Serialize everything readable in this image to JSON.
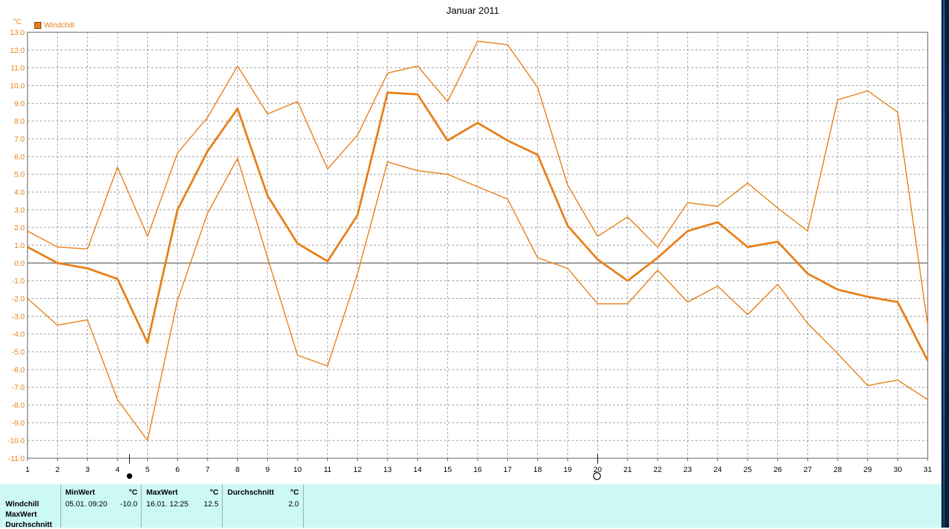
{
  "chart_data": {
    "type": "line",
    "title": "Januar 2011",
    "ylabel": "°C",
    "xlabel": "",
    "legend": [
      "Windchill"
    ],
    "ylim": [
      -11,
      13
    ],
    "yticks": [
      "13.0",
      "12.0",
      "11.0",
      "10.0",
      "9.0",
      "8.0",
      "7.0",
      "6.0",
      "5.0",
      "4.0",
      "3.0",
      "2.0",
      "1.0",
      "0.0",
      "-1.0",
      "-2.0",
      "-3.0",
      "-4.0",
      "-5.0",
      "-6.0",
      "-7.0",
      "-8.0",
      "-9.0",
      "-10.0",
      "-11.0"
    ],
    "x": [
      "1",
      "2",
      "3",
      "4",
      "5",
      "6",
      "7",
      "8",
      "9",
      "10",
      "11",
      "12",
      "13",
      "14",
      "15",
      "16",
      "17",
      "18",
      "19",
      "20",
      "21",
      "22",
      "23",
      "24",
      "25",
      "26",
      "27",
      "28",
      "29",
      "30",
      "31"
    ],
    "grid": true,
    "color": "#e8801a",
    "series": [
      {
        "values": [
          1.8,
          0.9,
          0.8,
          5.4,
          1.5,
          6.2,
          8.2,
          11.1,
          8.4,
          9.1,
          5.3,
          7.2,
          10.7,
          11.1,
          9.1,
          12.5,
          12.3,
          9.9,
          4.4,
          1.5,
          2.6,
          0.9,
          3.4,
          3.2,
          4.5,
          3.1,
          1.8,
          9.2,
          9.7,
          8.5,
          -3.5
        ],
        "width": 1.5
      },
      {
        "values": [
          0.9,
          0.0,
          -0.3,
          -0.9,
          -4.5,
          3.0,
          6.3,
          8.7,
          3.8,
          1.1,
          0.1,
          2.7,
          9.6,
          9.5,
          6.9,
          7.9,
          6.9,
          6.1,
          2.1,
          0.2,
          -1.0,
          0.3,
          1.8,
          2.3,
          0.9,
          1.2,
          -0.6,
          -1.5,
          -1.9,
          -2.2,
          -5.5
        ],
        "width": 3
      },
      {
        "values": [
          -2.0,
          -3.5,
          -3.2,
          -7.7,
          -10.0,
          -2.1,
          2.8,
          5.9,
          0.3,
          -5.2,
          -5.8,
          -0.6,
          5.7,
          5.2,
          5.0,
          4.3,
          3.6,
          0.3,
          -0.3,
          -2.3,
          -2.3,
          -0.4,
          -2.2,
          -1.3,
          -2.9,
          -1.2,
          -3.4,
          -5.1,
          -6.9,
          -6.6,
          -7.7
        ],
        "width": 1.5
      }
    ],
    "markers": [
      {
        "type": "filled-circle",
        "x": 4.4
      },
      {
        "type": "open-circle",
        "x": 20.0
      }
    ]
  },
  "stats": {
    "row_labels": [
      "Windchill",
      "MaxWert",
      "Durchschnitt"
    ],
    "min": {
      "header": "MinWert",
      "unit": "°C",
      "date": "05.01.  09:20",
      "value": "-10.0"
    },
    "max": {
      "header": "MaxWert",
      "unit": "°C",
      "date": "16.01.  12:25",
      "value": "12.5"
    },
    "avg": {
      "header": "Durchschnitt",
      "unit": "°C",
      "value": "2.0"
    }
  }
}
